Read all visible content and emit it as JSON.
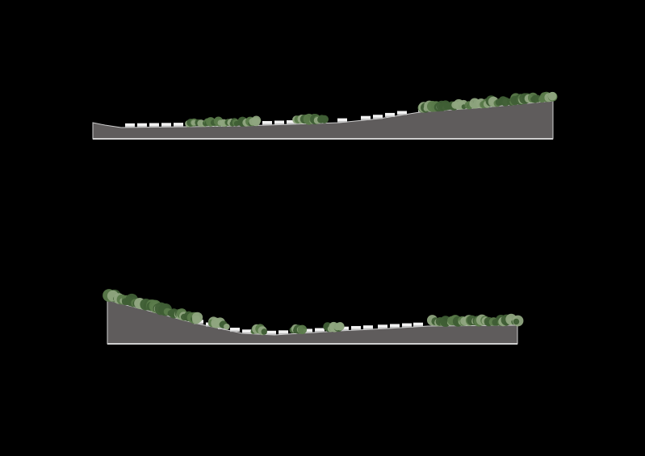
{
  "colors": {
    "background": "#000000",
    "ground": "#5f5c5c",
    "ground_edge": "#cfcfcf",
    "building": "#f2f2f2",
    "building_shade": "#bdbdbd",
    "tree_dark": "#3f5e35",
    "tree_mid": "#5a7a4a",
    "tree_light": "#8fa57f",
    "flower": "#9a6a9a"
  },
  "sections": [
    {
      "id": "upper-section"
    },
    {
      "id": "lower-section"
    }
  ]
}
